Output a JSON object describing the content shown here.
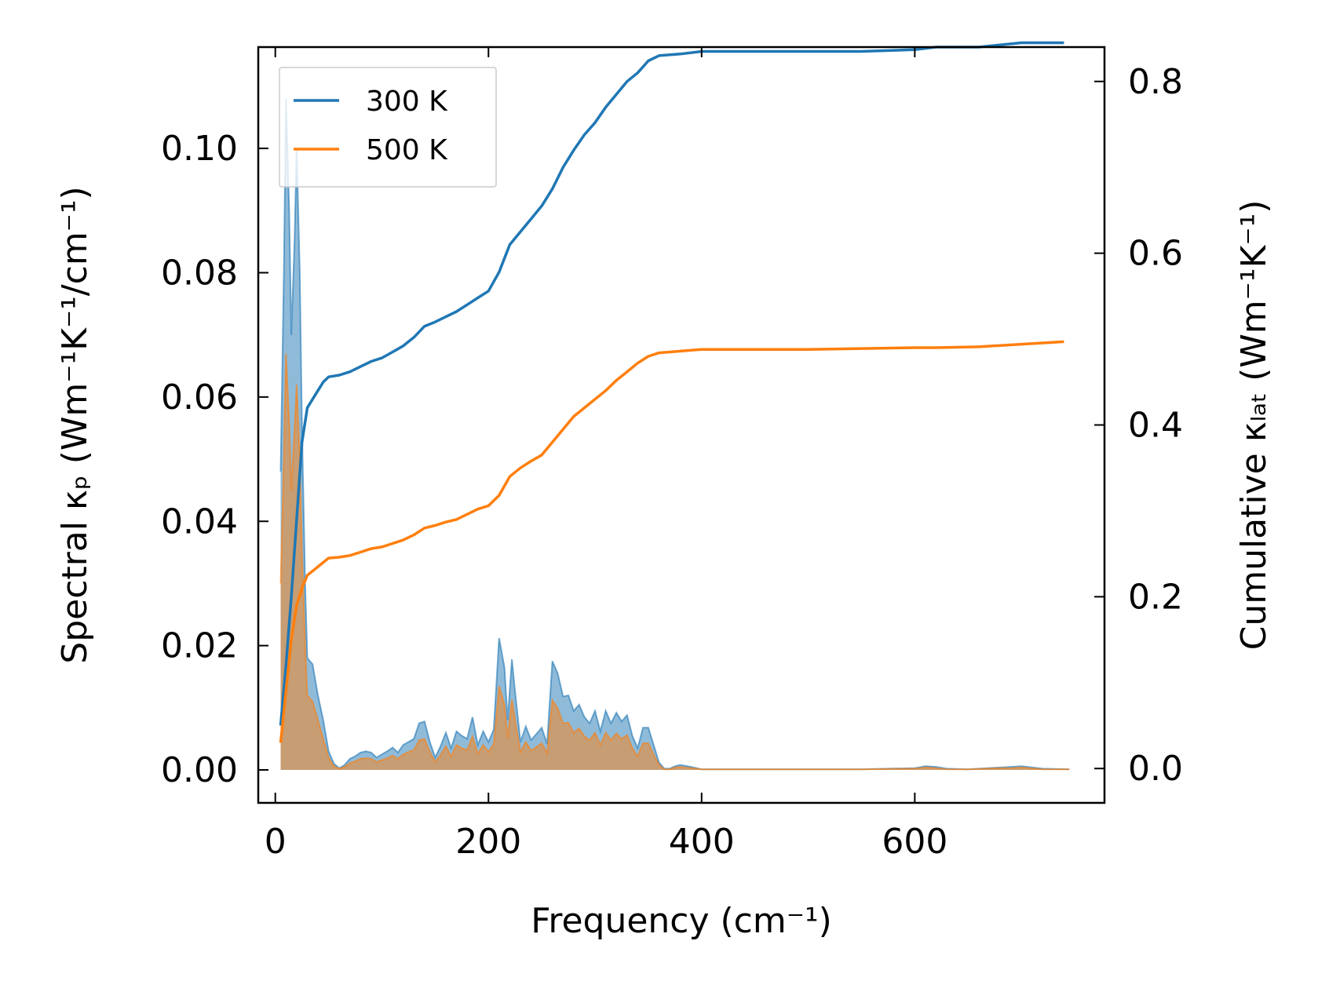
{
  "chart_data": {
    "type": "line",
    "xlabel": "Frequency (cm⁻¹)",
    "ylabel_left": "Spectral κₚ (Wm⁻¹K⁻¹/cm⁻¹)",
    "ylabel_right": "Cumulative κₗₐₜ (Wm⁻¹K⁻¹)",
    "xlim": [
      -16,
      778
    ],
    "ylim_left": [
      -0.0053,
      0.1163
    ],
    "ylim_right": [
      -0.04,
      0.84
    ],
    "x_ticks": [
      0,
      200,
      400,
      600
    ],
    "y_ticks_left": [
      0.0,
      0.02,
      0.04,
      0.06,
      0.08,
      0.1
    ],
    "y_ticks_left_labels": [
      "0.00",
      "0.02",
      "0.04",
      "0.06",
      "0.08",
      "0.10"
    ],
    "y_ticks_right": [
      0.0,
      0.2,
      0.4,
      0.6,
      0.8
    ],
    "y_ticks_right_labels": [
      "0.0",
      "0.2",
      "0.4",
      "0.6",
      "0.8"
    ],
    "grid": false,
    "legend_position": "top-left",
    "series": [
      {
        "name": "300 K",
        "color": "#1f77b4",
        "cumulative": [
          [
            5,
            0.05
          ],
          [
            10,
            0.12
          ],
          [
            15,
            0.2
          ],
          [
            20,
            0.29
          ],
          [
            25,
            0.38
          ],
          [
            30,
            0.42
          ],
          [
            35,
            0.43
          ],
          [
            40,
            0.44
          ],
          [
            45,
            0.45
          ],
          [
            50,
            0.456
          ],
          [
            60,
            0.458
          ],
          [
            70,
            0.462
          ],
          [
            80,
            0.468
          ],
          [
            90,
            0.474
          ],
          [
            100,
            0.478
          ],
          [
            110,
            0.485
          ],
          [
            120,
            0.492
          ],
          [
            130,
            0.502
          ],
          [
            140,
            0.515
          ],
          [
            150,
            0.52
          ],
          [
            160,
            0.526
          ],
          [
            170,
            0.532
          ],
          [
            180,
            0.54
          ],
          [
            190,
            0.548
          ],
          [
            200,
            0.556
          ],
          [
            210,
            0.578
          ],
          [
            220,
            0.61
          ],
          [
            230,
            0.625
          ],
          [
            240,
            0.64
          ],
          [
            250,
            0.655
          ],
          [
            260,
            0.675
          ],
          [
            270,
            0.7
          ],
          [
            280,
            0.72
          ],
          [
            290,
            0.738
          ],
          [
            300,
            0.752
          ],
          [
            310,
            0.77
          ],
          [
            320,
            0.785
          ],
          [
            330,
            0.8
          ],
          [
            340,
            0.81
          ],
          [
            350,
            0.824
          ],
          [
            360,
            0.83
          ],
          [
            380,
            0.832
          ],
          [
            400,
            0.835
          ],
          [
            500,
            0.835
          ],
          [
            550,
            0.835
          ],
          [
            600,
            0.837
          ],
          [
            620,
            0.84
          ],
          [
            660,
            0.84
          ],
          [
            700,
            0.845
          ],
          [
            740,
            0.845
          ]
        ],
        "spectral": [
          [
            5,
            0.048
          ],
          [
            8,
            0.08
          ],
          [
            10,
            0.108
          ],
          [
            13,
            0.09
          ],
          [
            15,
            0.07
          ],
          [
            18,
            0.085
          ],
          [
            20,
            0.1
          ],
          [
            23,
            0.08
          ],
          [
            25,
            0.055
          ],
          [
            28,
            0.03
          ],
          [
            30,
            0.018
          ],
          [
            35,
            0.017
          ],
          [
            40,
            0.012
          ],
          [
            45,
            0.008
          ],
          [
            50,
            0.003
          ],
          [
            55,
            0.001
          ],
          [
            60,
            0.0003
          ],
          [
            65,
            0.0008
          ],
          [
            70,
            0.0018
          ],
          [
            75,
            0.0022
          ],
          [
            80,
            0.0028
          ],
          [
            85,
            0.003
          ],
          [
            90,
            0.0028
          ],
          [
            95,
            0.002
          ],
          [
            100,
            0.0025
          ],
          [
            105,
            0.003
          ],
          [
            110,
            0.0036
          ],
          [
            115,
            0.0028
          ],
          [
            120,
            0.004
          ],
          [
            125,
            0.0045
          ],
          [
            130,
            0.005
          ],
          [
            135,
            0.0075
          ],
          [
            140,
            0.0078
          ],
          [
            145,
            0.0045
          ],
          [
            150,
            0.002
          ],
          [
            155,
            0.0038
          ],
          [
            160,
            0.006
          ],
          [
            165,
            0.0035
          ],
          [
            170,
            0.0062
          ],
          [
            175,
            0.0055
          ],
          [
            180,
            0.005
          ],
          [
            185,
            0.0085
          ],
          [
            190,
            0.004
          ],
          [
            195,
            0.0062
          ],
          [
            200,
            0.0045
          ],
          [
            205,
            0.0065
          ],
          [
            210,
            0.0212
          ],
          [
            215,
            0.0165
          ],
          [
            218,
            0.008
          ],
          [
            222,
            0.0178
          ],
          [
            225,
            0.0125
          ],
          [
            230,
            0.0045
          ],
          [
            235,
            0.007
          ],
          [
            240,
            0.0048
          ],
          [
            245,
            0.0058
          ],
          [
            250,
            0.0068
          ],
          [
            255,
            0.0042
          ],
          [
            260,
            0.0175
          ],
          [
            265,
            0.0155
          ],
          [
            270,
            0.0118
          ],
          [
            275,
            0.012
          ],
          [
            280,
            0.0095
          ],
          [
            285,
            0.0105
          ],
          [
            290,
            0.0085
          ],
          [
            295,
            0.0075
          ],
          [
            300,
            0.0095
          ],
          [
            305,
            0.0062
          ],
          [
            310,
            0.0095
          ],
          [
            315,
            0.0075
          ],
          [
            320,
            0.0092
          ],
          [
            325,
            0.0078
          ],
          [
            330,
            0.0088
          ],
          [
            335,
            0.0055
          ],
          [
            340,
            0.0035
          ],
          [
            345,
            0.0068
          ],
          [
            350,
            0.0068
          ],
          [
            355,
            0.004
          ],
          [
            360,
            0.0012
          ],
          [
            365,
            0.0002
          ],
          [
            370,
            0.0002
          ],
          [
            375,
            0.0006
          ],
          [
            380,
            0.0008
          ],
          [
            390,
            0.0005
          ],
          [
            400,
            0.0001
          ],
          [
            500,
            0.0001
          ],
          [
            550,
            0.0001
          ],
          [
            600,
            0.0003
          ],
          [
            610,
            0.0006
          ],
          [
            620,
            0.0005
          ],
          [
            630,
            0.0002
          ],
          [
            650,
            0.0001
          ],
          [
            680,
            0.0004
          ],
          [
            690,
            0.0005
          ],
          [
            700,
            0.0006
          ],
          [
            720,
            0.0002
          ],
          [
            745,
            0.0001
          ]
        ]
      },
      {
        "name": "500 K",
        "color": "#ff7f0e",
        "cumulative": [
          [
            5,
            0.03
          ],
          [
            10,
            0.09
          ],
          [
            15,
            0.15
          ],
          [
            20,
            0.19
          ],
          [
            25,
            0.21
          ],
          [
            30,
            0.225
          ],
          [
            40,
            0.235
          ],
          [
            50,
            0.245
          ],
          [
            60,
            0.246
          ],
          [
            70,
            0.248
          ],
          [
            80,
            0.252
          ],
          [
            90,
            0.256
          ],
          [
            100,
            0.258
          ],
          [
            110,
            0.262
          ],
          [
            120,
            0.266
          ],
          [
            130,
            0.272
          ],
          [
            140,
            0.28
          ],
          [
            150,
            0.283
          ],
          [
            160,
            0.287
          ],
          [
            170,
            0.29
          ],
          [
            180,
            0.296
          ],
          [
            190,
            0.302
          ],
          [
            200,
            0.306
          ],
          [
            210,
            0.318
          ],
          [
            220,
            0.34
          ],
          [
            230,
            0.35
          ],
          [
            240,
            0.358
          ],
          [
            250,
            0.365
          ],
          [
            260,
            0.38
          ],
          [
            270,
            0.395
          ],
          [
            280,
            0.41
          ],
          [
            290,
            0.42
          ],
          [
            300,
            0.43
          ],
          [
            310,
            0.44
          ],
          [
            320,
            0.452
          ],
          [
            330,
            0.462
          ],
          [
            340,
            0.472
          ],
          [
            350,
            0.48
          ],
          [
            360,
            0.484
          ],
          [
            400,
            0.488
          ],
          [
            500,
            0.488
          ],
          [
            600,
            0.49
          ],
          [
            620,
            0.49
          ],
          [
            660,
            0.491
          ],
          [
            700,
            0.494
          ],
          [
            740,
            0.497
          ]
        ],
        "spectral": [
          [
            5,
            0.03
          ],
          [
            8,
            0.05
          ],
          [
            10,
            0.067
          ],
          [
            13,
            0.056
          ],
          [
            15,
            0.045
          ],
          [
            18,
            0.055
          ],
          [
            20,
            0.062
          ],
          [
            23,
            0.05
          ],
          [
            25,
            0.035
          ],
          [
            28,
            0.02
          ],
          [
            30,
            0.012
          ],
          [
            35,
            0.011
          ],
          [
            40,
            0.008
          ],
          [
            45,
            0.005
          ],
          [
            50,
            0.002
          ],
          [
            55,
            0.0006
          ],
          [
            60,
            0.0002
          ],
          [
            65,
            0.0005
          ],
          [
            70,
            0.0011
          ],
          [
            75,
            0.0014
          ],
          [
            80,
            0.0018
          ],
          [
            85,
            0.0019
          ],
          [
            90,
            0.0018
          ],
          [
            95,
            0.0013
          ],
          [
            100,
            0.0016
          ],
          [
            105,
            0.0019
          ],
          [
            110,
            0.0023
          ],
          [
            115,
            0.0018
          ],
          [
            120,
            0.0025
          ],
          [
            125,
            0.0029
          ],
          [
            130,
            0.0032
          ],
          [
            135,
            0.0048
          ],
          [
            140,
            0.005
          ],
          [
            145,
            0.0029
          ],
          [
            150,
            0.0013
          ],
          [
            155,
            0.0024
          ],
          [
            160,
            0.0038
          ],
          [
            165,
            0.0022
          ],
          [
            170,
            0.004
          ],
          [
            175,
            0.0035
          ],
          [
            180,
            0.0032
          ],
          [
            185,
            0.0054
          ],
          [
            190,
            0.0026
          ],
          [
            195,
            0.004
          ],
          [
            200,
            0.0029
          ],
          [
            205,
            0.0042
          ],
          [
            210,
            0.0135
          ],
          [
            215,
            0.0105
          ],
          [
            218,
            0.0051
          ],
          [
            222,
            0.0113
          ],
          [
            225,
            0.008
          ],
          [
            230,
            0.0029
          ],
          [
            235,
            0.0045
          ],
          [
            240,
            0.0031
          ],
          [
            245,
            0.0037
          ],
          [
            250,
            0.0043
          ],
          [
            255,
            0.0027
          ],
          [
            260,
            0.0112
          ],
          [
            265,
            0.0099
          ],
          [
            270,
            0.0075
          ],
          [
            275,
            0.0076
          ],
          [
            280,
            0.006
          ],
          [
            285,
            0.0067
          ],
          [
            290,
            0.0054
          ],
          [
            295,
            0.0048
          ],
          [
            300,
            0.006
          ],
          [
            305,
            0.004
          ],
          [
            310,
            0.006
          ],
          [
            315,
            0.0048
          ],
          [
            320,
            0.0059
          ],
          [
            325,
            0.005
          ],
          [
            330,
            0.0056
          ],
          [
            335,
            0.0035
          ],
          [
            340,
            0.0022
          ],
          [
            345,
            0.0043
          ],
          [
            350,
            0.0043
          ],
          [
            355,
            0.0025
          ],
          [
            360,
            0.0008
          ],
          [
            365,
            0.0001
          ],
          [
            370,
            0.0001
          ],
          [
            375,
            0.0004
          ],
          [
            380,
            0.0005
          ],
          [
            390,
            0.0003
          ],
          [
            400,
            0.0001
          ],
          [
            500,
            0.0001
          ],
          [
            550,
            0.0001
          ],
          [
            600,
            0.0002
          ],
          [
            610,
            0.0004
          ],
          [
            620,
            0.0003
          ],
          [
            630,
            0.0001
          ],
          [
            650,
            0.0001
          ],
          [
            680,
            0.0003
          ],
          [
            690,
            0.0003
          ],
          [
            700,
            0.0004
          ],
          [
            720,
            0.0001
          ],
          [
            745,
            0.0001
          ]
        ]
      }
    ]
  }
}
